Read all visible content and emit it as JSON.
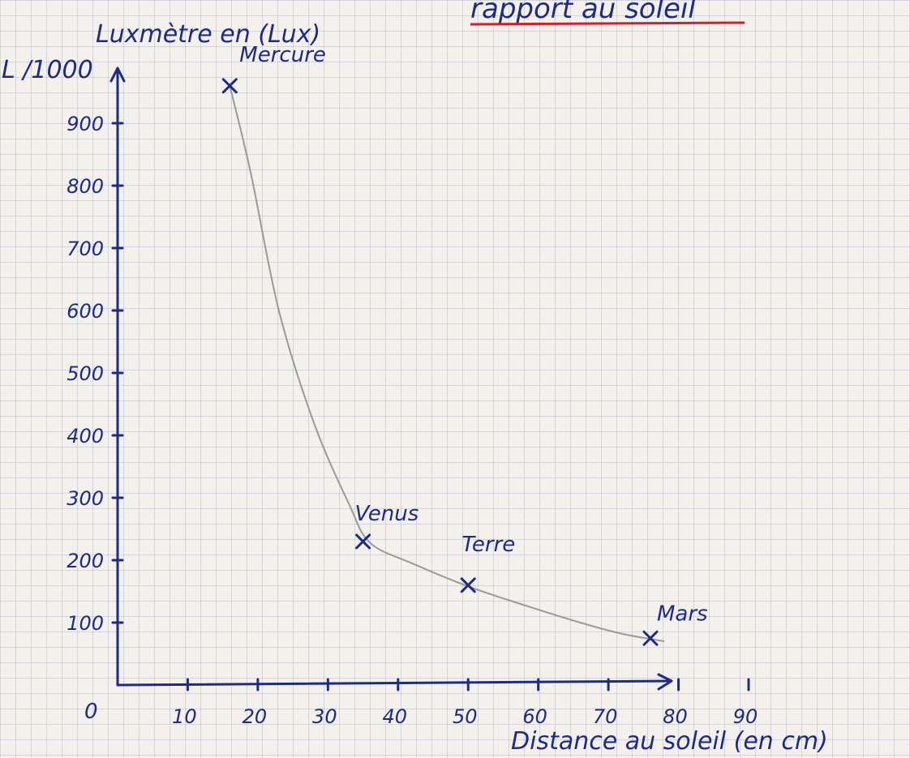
{
  "header_note": "rapport au soleil",
  "chart_data": {
    "type": "line",
    "title": "",
    "xlabel": "Distance au soleil (en cm)",
    "ylabel": "Luxmètre en (Lux)",
    "y_prefix": "L /1000",
    "origin_label": "0",
    "xlim": [
      0,
      90
    ],
    "ylim": [
      0,
      1000
    ],
    "x_ticks": [
      10,
      20,
      30,
      40,
      50,
      60,
      70,
      80,
      90
    ],
    "x_tick_labels": [
      "10",
      "20",
      "30",
      "40",
      "50",
      "60",
      "70",
      "80",
      "90"
    ],
    "y_ticks": [
      100,
      200,
      300,
      400,
      500,
      600,
      700,
      800,
      900
    ],
    "y_tick_labels": [
      "100",
      "200",
      "300",
      "400",
      "500",
      "600",
      "700",
      "800",
      "900"
    ],
    "points": [
      {
        "name": "Mercure",
        "x": 16,
        "y": 960
      },
      {
        "name": "Venus",
        "x": 35,
        "y": 230
      },
      {
        "name": "Terre",
        "x": 50,
        "y": 160
      },
      {
        "name": "Mars",
        "x": 76,
        "y": 75
      }
    ],
    "curve": [
      [
        16,
        960
      ],
      [
        19,
        820
      ],
      [
        23,
        600
      ],
      [
        28,
        420
      ],
      [
        33,
        290
      ],
      [
        36,
        228
      ],
      [
        42,
        195
      ],
      [
        50,
        158
      ],
      [
        58,
        128
      ],
      [
        66,
        100
      ],
      [
        72,
        82
      ],
      [
        78,
        70
      ]
    ],
    "grid": true,
    "colors": {
      "ink": "#1c2a8c",
      "curve": "#9a9a9a",
      "underline": "#d0202a"
    }
  }
}
